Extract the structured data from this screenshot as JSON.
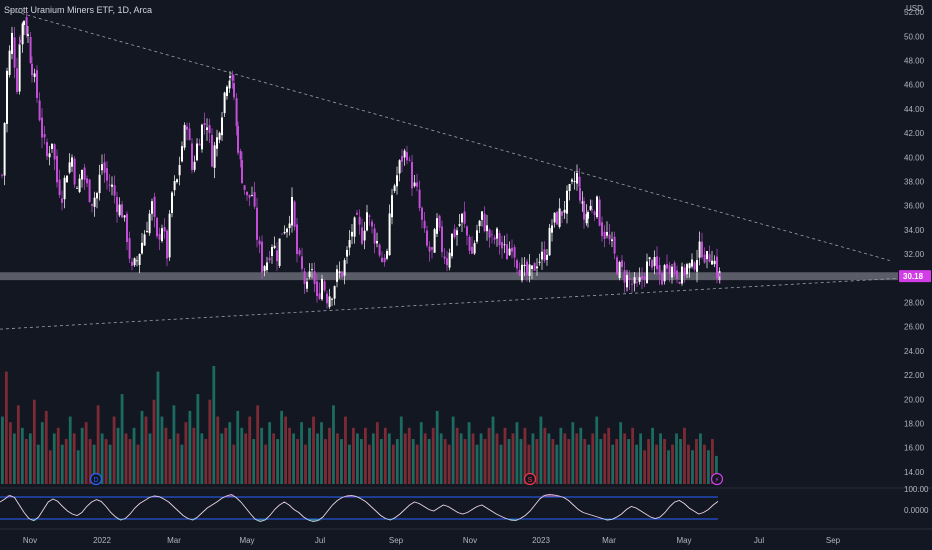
{
  "header": {
    "symbol_title": "Sprott Uranium Miners ETF, 1D, Arca",
    "currency": "USD"
  },
  "price_badge": {
    "value": "30.18",
    "color": "#d23de8"
  },
  "colors": {
    "background": "#131722",
    "up_candle": "#ffffff",
    "down_candle": "#c34fd8",
    "volume_up": "#1f7a6b",
    "volume_down": "#8f2f38",
    "trendline": "#9aa0ab",
    "support_band": "#9598a1",
    "oscillator_bound": "#2962ff"
  },
  "icons": {
    "earnings_icon": "E",
    "dividend_icon": "D",
    "split_icon": "S",
    "flash_icon": "⚡"
  },
  "chart_data": [
    {
      "type": "candlestick",
      "title": "Sprott Uranium Miners ETF, 1D, Arca",
      "xlabel": "",
      "ylabel": "USD",
      "x_ticks": [
        "Nov",
        "2022",
        "Mar",
        "May",
        "Jul",
        "Sep",
        "Nov",
        "2023",
        "Mar",
        "May",
        "Jul",
        "Sep"
      ],
      "y_ticks": [
        "52.00",
        "50.00",
        "48.00",
        "46.00",
        "44.00",
        "42.00",
        "40.00",
        "38.00",
        "36.00",
        "34.00",
        "32.00",
        "30.00",
        "28.00",
        "26.00",
        "24.00",
        "22.00",
        "20.00",
        "18.00",
        "16.00",
        "14.00"
      ],
      "ylim": [
        13.5,
        52.5
      ],
      "last_price": 30.18,
      "support_zone": [
        29.85,
        30.5
      ],
      "upper_trendline": {
        "from": {
          "x": "Oct 2021",
          "y": 51.5
        },
        "to": {
          "x": "Sep 2023",
          "y": 31.8
        }
      },
      "lower_trendline": {
        "from": {
          "x": "Oct 2021",
          "y": 25.8
        },
        "to": {
          "x": "Sep 2023",
          "y": 30.0
        }
      },
      "price_path": [
        [
          0,
          38.5
        ],
        [
          5,
          47
        ],
        [
          10,
          50
        ],
        [
          15,
          46
        ],
        [
          18,
          50
        ],
        [
          22,
          51.5
        ],
        [
          26,
          50
        ],
        [
          30,
          47.5
        ],
        [
          35,
          45
        ],
        [
          40,
          42
        ],
        [
          45,
          40
        ],
        [
          50,
          41.5
        ],
        [
          55,
          38
        ],
        [
          60,
          37
        ],
        [
          65,
          39
        ],
        [
          70,
          40
        ],
        [
          75,
          37
        ],
        [
          80,
          39
        ],
        [
          85,
          37.5
        ],
        [
          90,
          36.5
        ],
        [
          95,
          37
        ],
        [
          100,
          39.5
        ],
        [
          105,
          38
        ],
        [
          110,
          37.5
        ],
        [
          115,
          36.2
        ],
        [
          120,
          35.5
        ],
        [
          125,
          33.5
        ],
        [
          130,
          30.5
        ],
        [
          135,
          31.5
        ],
        [
          140,
          33
        ],
        [
          145,
          34.5
        ],
        [
          150,
          36
        ],
        [
          155,
          33
        ],
        [
          160,
          34.5
        ],
        [
          165,
          32
        ],
        [
          170,
          37
        ],
        [
          175,
          38
        ],
        [
          180,
          41
        ],
        [
          185,
          43
        ],
        [
          190,
          39
        ],
        [
          195,
          41
        ],
        [
          200,
          42.5
        ],
        [
          205,
          43
        ],
        [
          210,
          40
        ],
        [
          215,
          41.5
        ],
        [
          220,
          44
        ],
        [
          225,
          46.5
        ],
        [
          228,
          47
        ],
        [
          232,
          45
        ],
        [
          236,
          41
        ],
        [
          240,
          38.5
        ],
        [
          245,
          36.5
        ],
        [
          250,
          37
        ],
        [
          255,
          33.5
        ],
        [
          260,
          31
        ],
        [
          265,
          31.5
        ],
        [
          270,
          33
        ],
        [
          275,
          32
        ],
        [
          280,
          34
        ],
        [
          285,
          34.5
        ],
        [
          290,
          36
        ],
        [
          295,
          32
        ],
        [
          300,
          30.5
        ],
        [
          305,
          29
        ],
        [
          310,
          31
        ],
        [
          315,
          28
        ],
        [
          320,
          30
        ],
        [
          325,
          28.5
        ],
        [
          330,
          29
        ],
        [
          335,
          30.2
        ],
        [
          340,
          30.5
        ],
        [
          345,
          32
        ],
        [
          350,
          34
        ],
        [
          355,
          34.5
        ],
        [
          360,
          33.5
        ],
        [
          365,
          35.5
        ],
        [
          370,
          34
        ],
        [
          375,
          33
        ],
        [
          380,
          31.5
        ],
        [
          385,
          32
        ],
        [
          390,
          37
        ],
        [
          395,
          38.5
        ],
        [
          400,
          40
        ],
        [
          405,
          40.5
        ],
        [
          410,
          38
        ],
        [
          415,
          37
        ],
        [
          420,
          34.5
        ],
        [
          425,
          32.5
        ],
        [
          430,
          32
        ],
        [
          435,
          34.5
        ],
        [
          440,
          32.5
        ],
        [
          445,
          31.5
        ],
        [
          450,
          33.5
        ],
        [
          455,
          34
        ],
        [
          460,
          35
        ],
        [
          465,
          33.5
        ],
        [
          470,
          32
        ],
        [
          475,
          34
        ],
        [
          480,
          35
        ],
        [
          485,
          34
        ],
        [
          490,
          33
        ],
        [
          495,
          33.5
        ],
        [
          500,
          32.5
        ],
        [
          505,
          32
        ],
        [
          510,
          33
        ],
        [
          515,
          31.5
        ],
        [
          520,
          30.5
        ],
        [
          525,
          30.2
        ],
        [
          530,
          30.5
        ],
        [
          535,
          31.5
        ],
        [
          540,
          31.7
        ],
        [
          545,
          32.5
        ],
        [
          550,
          34.5
        ],
        [
          555,
          35
        ],
        [
          560,
          35.5
        ],
        [
          565,
          36.5
        ],
        [
          570,
          37.5
        ],
        [
          575,
          38.5
        ],
        [
          578,
          37
        ],
        [
          582,
          35
        ],
        [
          586,
          35.5
        ],
        [
          590,
          36
        ],
        [
          595,
          36
        ],
        [
          600,
          34
        ],
        [
          605,
          33.5
        ],
        [
          610,
          32.5
        ],
        [
          615,
          31
        ],
        [
          620,
          30.5
        ],
        [
          625,
          30
        ],
        [
          630,
          29.5
        ],
        [
          635,
          29.2
        ],
        [
          640,
          30
        ],
        [
          645,
          31
        ],
        [
          650,
          31.5
        ],
        [
          655,
          30.5
        ],
        [
          660,
          30
        ],
        [
          665,
          31.5
        ],
        [
          670,
          30.8
        ],
        [
          675,
          30.5
        ],
        [
          680,
          30.2
        ],
        [
          685,
          31
        ],
        [
          690,
          30.8
        ],
        [
          695,
          32
        ],
        [
          700,
          32.5
        ],
        [
          705,
          31.5
        ],
        [
          710,
          32.2
        ],
        [
          715,
          30.5
        ],
        [
          718,
          30.18
        ]
      ]
    },
    {
      "type": "bar",
      "title": "",
      "ylabel": "",
      "series": [
        {
          "values": [
            12,
            20,
            11,
            9,
            14,
            10,
            8,
            9,
            15,
            7,
            11,
            13,
            6,
            9,
            10,
            7,
            8,
            12,
            9,
            6,
            10,
            11,
            8,
            7,
            14,
            9,
            8,
            7,
            12,
            10,
            16,
            9,
            8,
            10,
            7,
            13,
            12,
            9,
            15,
            20,
            12,
            10,
            8,
            14,
            9,
            7,
            11,
            13,
            10,
            16,
            9,
            8,
            15,
            21,
            12,
            9,
            10,
            11,
            7,
            13,
            10,
            9,
            12,
            8,
            14,
            10,
            7,
            11,
            9,
            8,
            13,
            12,
            10,
            9,
            8,
            11,
            7,
            10,
            12,
            9,
            11,
            8,
            10,
            14,
            9,
            8,
            12,
            7,
            10,
            9,
            8,
            10,
            7,
            9,
            11,
            8,
            10,
            9,
            7,
            8,
            12,
            9,
            10,
            8,
            7,
            11,
            9,
            8,
            10,
            13,
            9,
            8,
            7,
            12,
            10,
            9,
            8,
            11,
            9,
            7,
            9,
            8,
            10,
            12,
            9,
            7,
            10,
            8,
            9,
            11,
            8,
            10,
            7,
            9,
            8,
            12,
            10,
            9,
            8,
            7,
            10,
            9,
            8,
            11,
            9,
            10,
            8,
            7,
            9,
            12,
            8,
            9,
            10,
            7,
            8,
            11,
            9,
            8,
            10,
            7,
            9,
            6,
            8,
            10,
            7,
            9,
            8,
            6,
            7,
            9,
            8,
            10,
            7,
            6,
            8,
            9,
            7,
            6,
            8,
            5
          ],
          "colors": [
            "up",
            "down",
            "down",
            "up",
            "down",
            "up",
            "down",
            "up",
            "down",
            "up"
          ]
        }
      ]
    },
    {
      "type": "line",
      "title": "",
      "y_ticks": [
        "100.00",
        "0.0000"
      ],
      "ylim": [
        0,
        100
      ],
      "x": "oscillator",
      "values": [
        70,
        80,
        92,
        85,
        60,
        35,
        15,
        8,
        20,
        45,
        70,
        80,
        72,
        55,
        40,
        30,
        25,
        35,
        55,
        70,
        78,
        72,
        55,
        35,
        20,
        10,
        15,
        30,
        50,
        65,
        75,
        85,
        90,
        88,
        80,
        70,
        55,
        40,
        25,
        15,
        10,
        20,
        35,
        50,
        60,
        70,
        82,
        90,
        95,
        85,
        70,
        50,
        30,
        12,
        5,
        10,
        25,
        45,
        60,
        70,
        60,
        45,
        35,
        20,
        10,
        5,
        8,
        20,
        40,
        60,
        75,
        85,
        90,
        92,
        88,
        80,
        70,
        55,
        40,
        25,
        15,
        10,
        18,
        30,
        45,
        60,
        70,
        65,
        55,
        45,
        40,
        50,
        60,
        55,
        45,
        35,
        30,
        35,
        45,
        55,
        60,
        50,
        40,
        30,
        22,
        15,
        10,
        8,
        15,
        25,
        40,
        60,
        80,
        92,
        95,
        93,
        90,
        85,
        75,
        60,
        45,
        35,
        30,
        25,
        20,
        15,
        10,
        12,
        20,
        30,
        45,
        55,
        50,
        40,
        30,
        20,
        15,
        20,
        35,
        55,
        70,
        75,
        65,
        50,
        40,
        30,
        35,
        45,
        60,
        72
      ]
    }
  ]
}
